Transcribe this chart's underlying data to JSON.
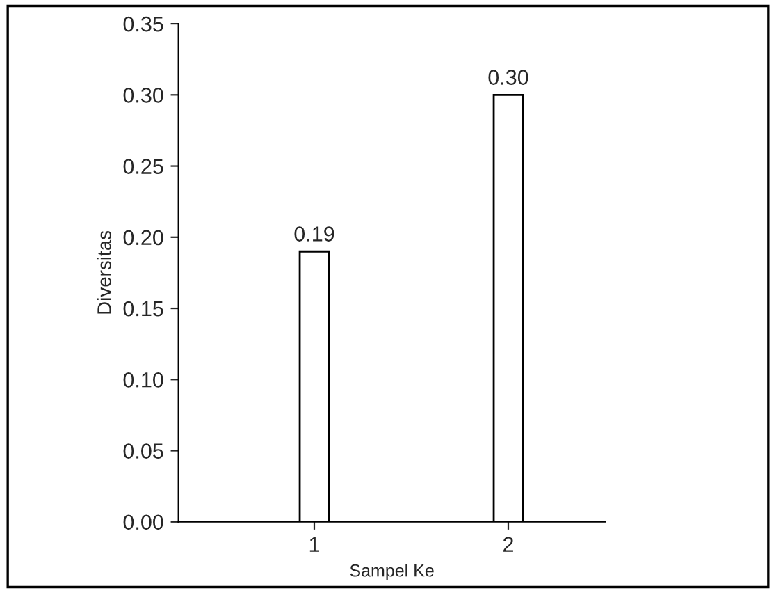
{
  "chart_data": {
    "type": "bar",
    "categories": [
      "1",
      "2"
    ],
    "values": [
      0.19,
      0.3
    ],
    "color": "#ffffff",
    "ylabel": "Diversitas",
    "xlabel": "Sampel Ke",
    "ylim": [
      0,
      0.35
    ],
    "yticks": [
      {
        "value": 0,
        "label": "0.00"
      },
      {
        "value": 0.05,
        "label": "0.05"
      },
      {
        "value": 0.1,
        "label": "0.10"
      },
      {
        "value": 0.15,
        "label": "0.15"
      },
      {
        "value": 0.2,
        "label": "0.20"
      },
      {
        "value": 0.25,
        "label": "0.25"
      },
      {
        "value": 0.3,
        "label": "0.30"
      },
      {
        "value": 0.35,
        "label": "0.35"
      }
    ],
    "value_labels": [
      "0.19",
      "0.30"
    ],
    "grid": false
  }
}
